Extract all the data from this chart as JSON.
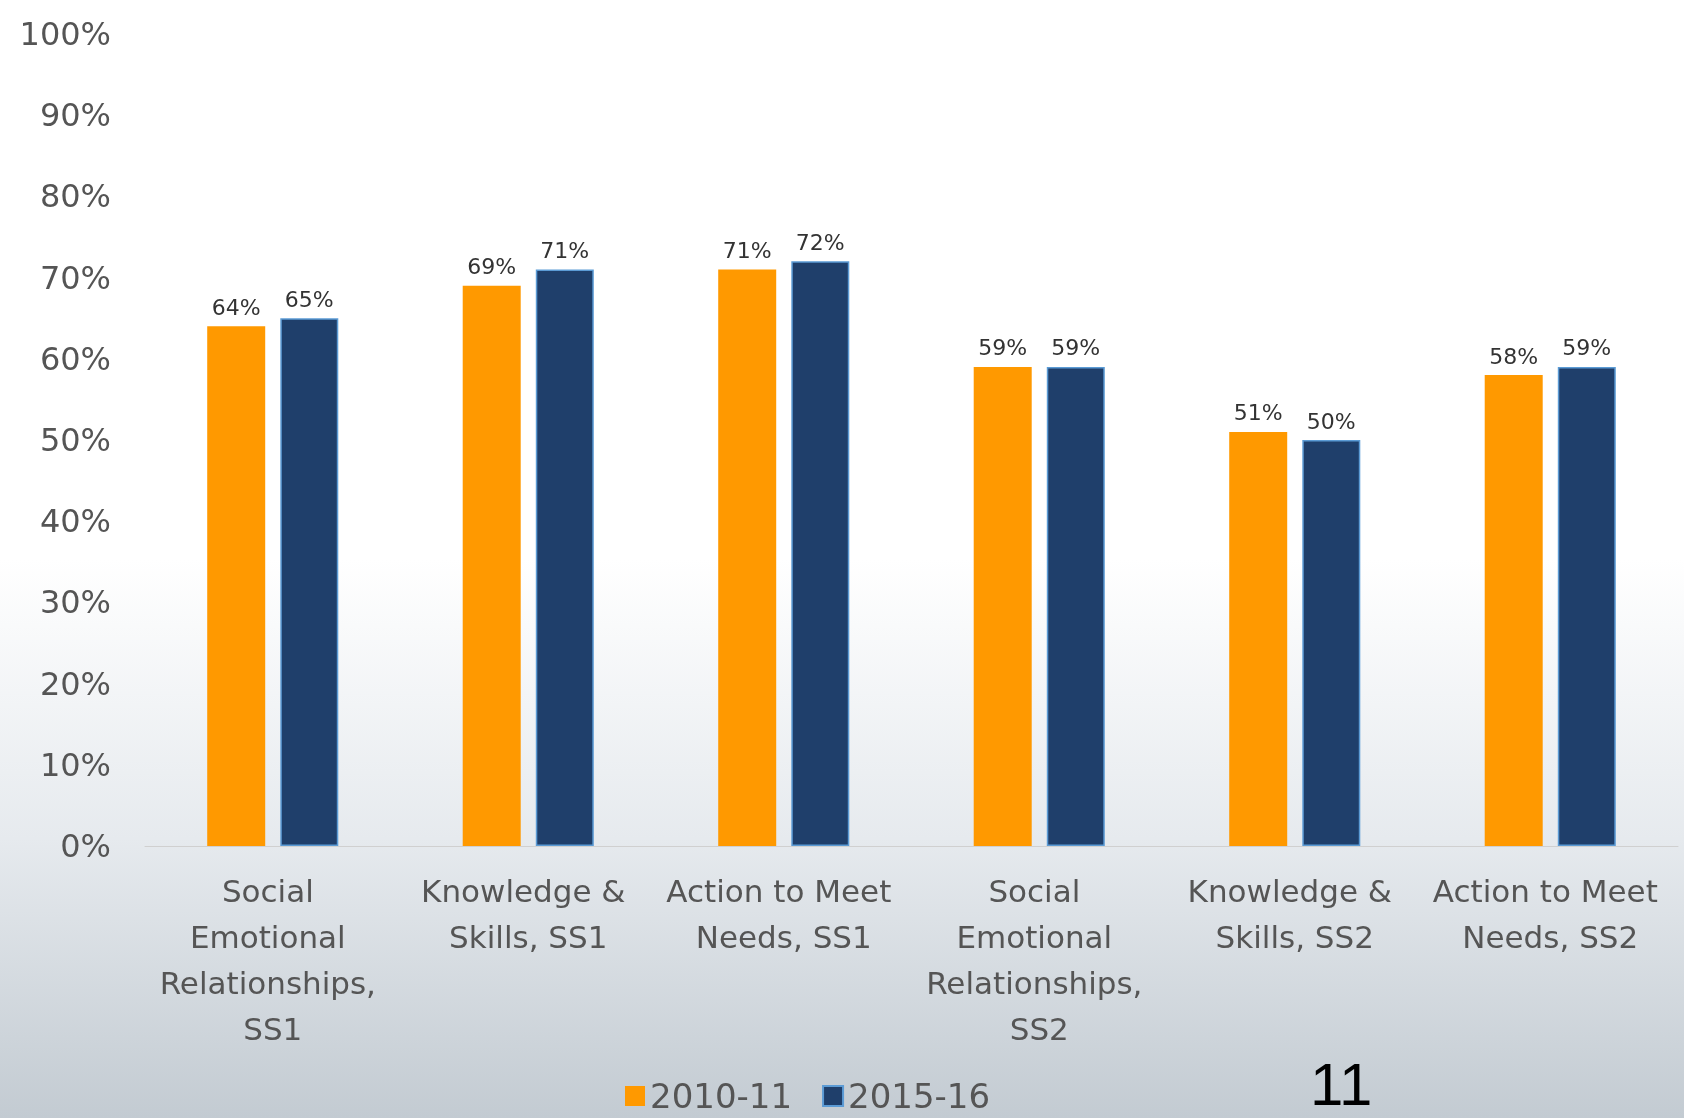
{
  "chart_data": {
    "type": "bar",
    "categories": [
      "Social Emotional Relationships, SS1",
      "Knowledge & Skills, SS1",
      "Action to Meet Needs, SS1",
      "Social Emotional Relationships, SS2",
      "Knowledge & Skills, SS2",
      "Action to Meet Needs, SS2"
    ],
    "series": [
      {
        "name": "2010-11",
        "color": "#ff9900",
        "values": [
          64,
          69,
          71,
          59,
          51,
          58
        ],
        "value_labels": [
          "64%",
          "69%",
          "71%",
          "59%",
          "51%",
          "58%"
        ]
      },
      {
        "name": "2015-16",
        "color": "#1f3f6b",
        "values": [
          65,
          71,
          72,
          59,
          50,
          59
        ],
        "value_labels": [
          "65%",
          "71%",
          "72%",
          "59%",
          "50%",
          "59%"
        ]
      }
    ],
    "ylim": [
      0,
      100
    ],
    "yticks": [
      {
        "value": 0,
        "label": "0%"
      },
      {
        "value": 10,
        "label": "10%"
      },
      {
        "value": 20,
        "label": "20%"
      },
      {
        "value": 30,
        "label": "30%"
      },
      {
        "value": 40,
        "label": "40%"
      },
      {
        "value": 50,
        "label": "50%"
      },
      {
        "value": 60,
        "label": "60%"
      },
      {
        "value": 70,
        "label": "70%"
      },
      {
        "value": 80,
        "label": "80%"
      },
      {
        "value": 90,
        "label": "90%"
      },
      {
        "value": 100,
        "label": "100%"
      }
    ],
    "grid": false,
    "legend": "bottom",
    "annotations": [
      "11"
    ]
  }
}
